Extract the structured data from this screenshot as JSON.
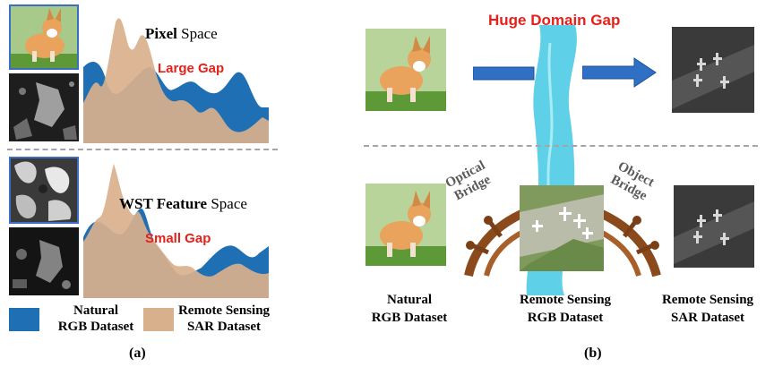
{
  "panel_a": {
    "top_title_bold": "Pixel",
    "top_title_rest": " Space",
    "top_gap": "Large Gap",
    "bottom_title_bold": "WST Feature",
    "bottom_title_rest": " Space",
    "bottom_gap": "Small Gap",
    "legend": [
      {
        "line1": "Natural",
        "line2": "RGB Dataset",
        "color": "#1f6fb5"
      },
      {
        "line1": "Remote Sensing",
        "line2": "SAR Dataset",
        "color": "#d9b08c"
      }
    ],
    "caption": "(a)"
  },
  "panel_b": {
    "gap_label": "Huge Domain Gap",
    "bridge_left": [
      "Optical",
      "Bridge"
    ],
    "bridge_right": [
      "Object",
      "Bridge"
    ],
    "datasets": [
      {
        "line1": "Natural",
        "line2": "RGB Dataset"
      },
      {
        "line1": "Remote Sensing",
        "line2": "RGB Dataset"
      },
      {
        "line1": "Remote Sensing",
        "line2": "SAR Dataset"
      }
    ],
    "caption": "(b)"
  },
  "colors": {
    "natural": "#1f6fb5",
    "sar": "#d9b08c",
    "gap_red": "#e8201a",
    "river": "#5ed0e8",
    "bridge_wood": "#8a4a1c",
    "arrow": "#2f6fc4"
  }
}
